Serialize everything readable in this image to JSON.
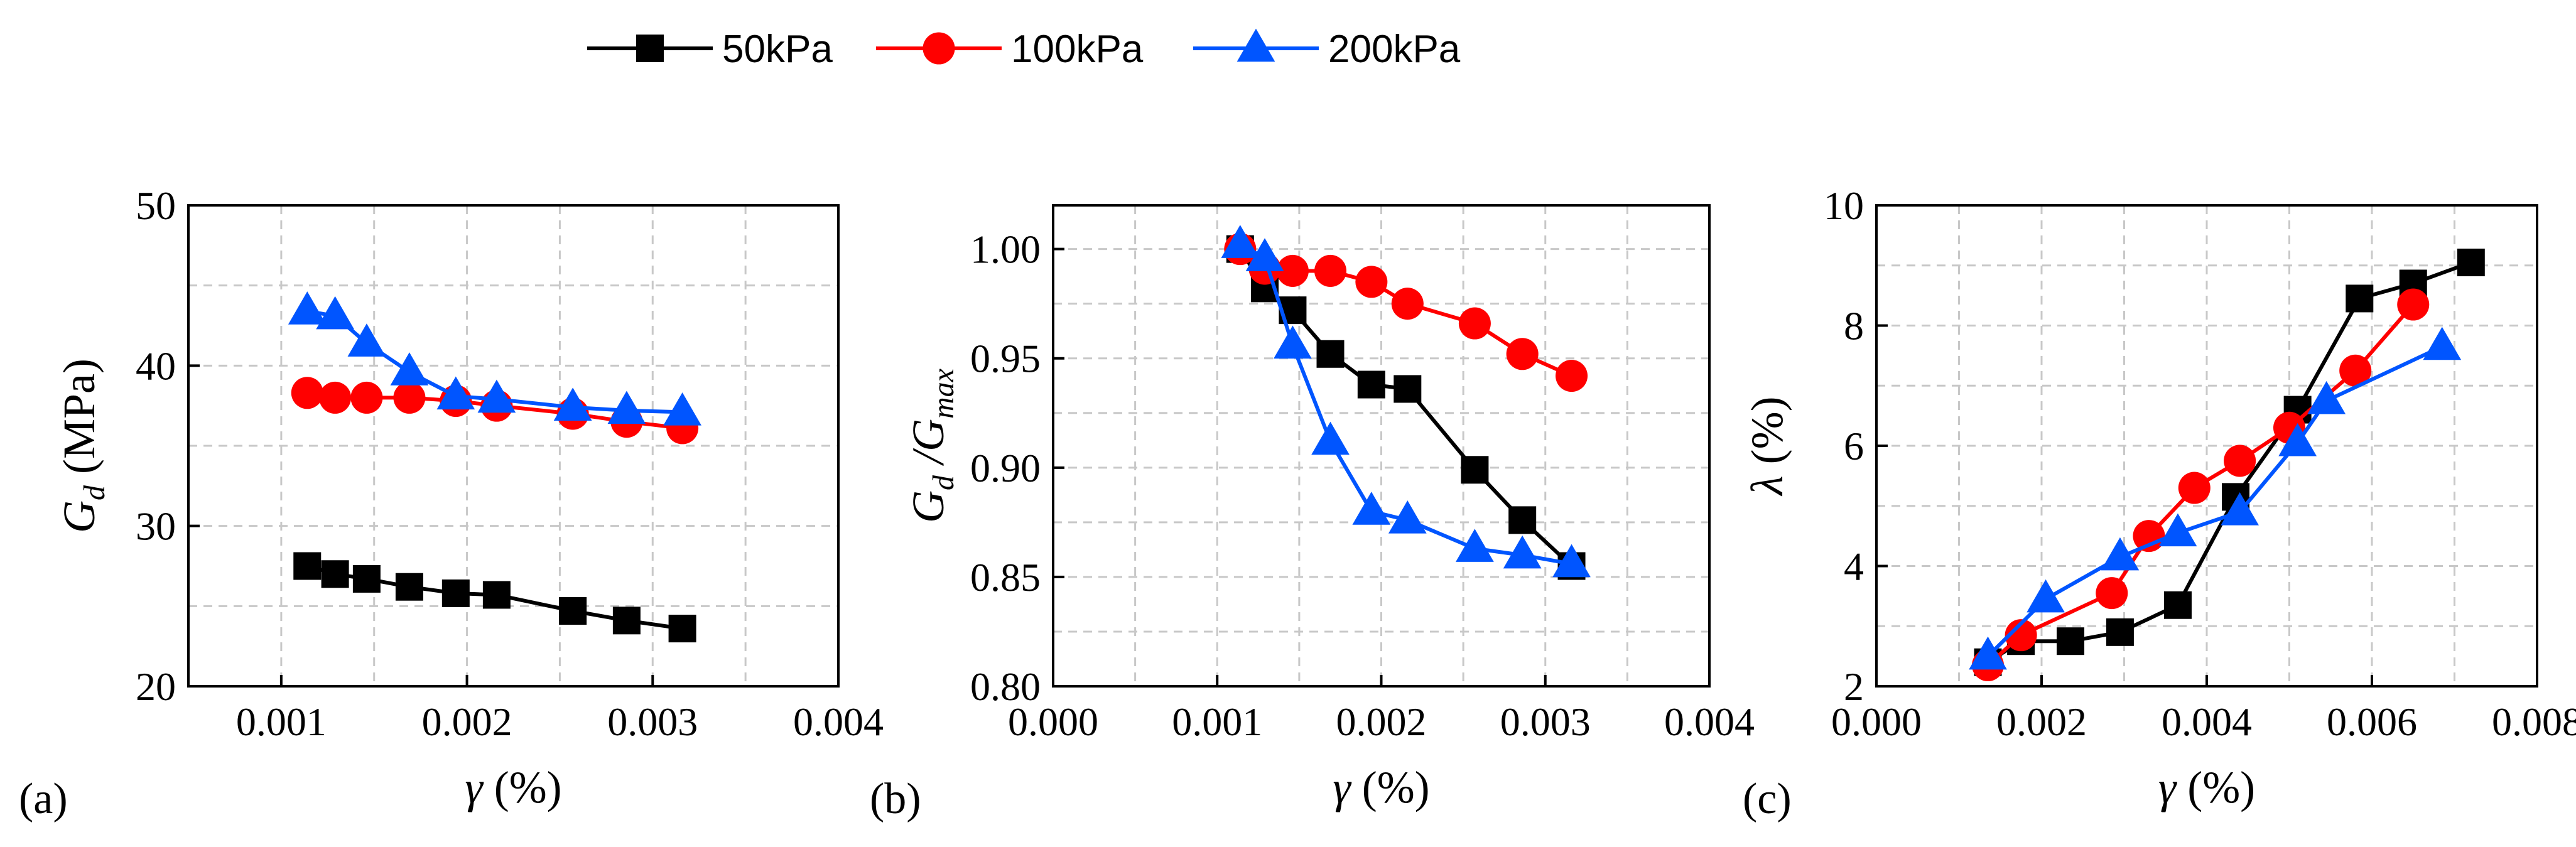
{
  "colors": {
    "50kPa": "#000000",
    "100kPa": "#ff0000",
    "200kPa": "#0055ff"
  },
  "legend": {
    "entries": [
      {
        "name": "50kPa",
        "marker": "square",
        "color": "#000000"
      },
      {
        "name": "100kPa",
        "marker": "circle",
        "color": "#ff0000"
      },
      {
        "name": "200kPa",
        "marker": "triangle",
        "color": "#0055ff"
      }
    ],
    "placement": "top-center"
  },
  "chart_data": [
    {
      "panel": "(a)",
      "type": "line",
      "xlabel": {
        "main": "γ",
        "unit": " (%)"
      },
      "ylabel": {
        "main": "G",
        "sub": "d",
        "unit": " (MPa)"
      },
      "xlim": [
        0.0005,
        0.004
      ],
      "ylim": [
        20,
        50
      ],
      "xticks": [
        0.001,
        0.002,
        0.003,
        0.004
      ],
      "xtick_labels": [
        "0.001",
        "0.002",
        "0.003",
        "0.004"
      ],
      "yticks": [
        20,
        30,
        40,
        50
      ],
      "ytick_labels": [
        "20",
        "30",
        "40",
        "50"
      ],
      "grid": true,
      "series": [
        {
          "name": "50kPa",
          "marker": "square",
          "color": "#000000",
          "x": [
            0.00114,
            0.00129,
            0.00146,
            0.00169,
            0.00194,
            0.00216,
            0.00257,
            0.00286,
            0.00316
          ],
          "y": [
            27.5,
            27.0,
            26.7,
            26.2,
            25.8,
            25.7,
            24.7,
            24.1,
            23.6
          ]
        },
        {
          "name": "100kPa",
          "marker": "circle",
          "color": "#ff0000",
          "x": [
            0.00114,
            0.00129,
            0.00146,
            0.00169,
            0.00194,
            0.00216,
            0.00257,
            0.00286,
            0.00316
          ],
          "y": [
            38.3,
            38.0,
            38.0,
            38.0,
            37.8,
            37.5,
            37.0,
            36.5,
            36.1
          ]
        },
        {
          "name": "200kPa",
          "marker": "triangle",
          "color": "#0055ff",
          "x": [
            0.00114,
            0.00129,
            0.00146,
            0.00169,
            0.00194,
            0.00216,
            0.00257,
            0.00286,
            0.00316
          ],
          "y": [
            43.4,
            43.1,
            41.4,
            39.6,
            38.1,
            37.9,
            37.4,
            37.2,
            37.1
          ]
        }
      ]
    },
    {
      "panel": "(b)",
      "type": "line",
      "xlabel": {
        "main": "γ",
        "unit": " (%)"
      },
      "ylabel": {
        "main": "G",
        "sub": "d",
        "mid": " /G",
        "sub2": "max",
        "unit": ""
      },
      "xlim": [
        0.0,
        0.004
      ],
      "ylim": [
        0.8,
        1.02
      ],
      "xticks": [
        0.0,
        0.001,
        0.002,
        0.003,
        0.004
      ],
      "xtick_labels": [
        "0.000",
        "0.001",
        "0.002",
        "0.003",
        "0.004"
      ],
      "yticks": [
        0.8,
        0.85,
        0.9,
        0.95,
        1.0
      ],
      "ytick_labels": [
        "0.80",
        "0.85",
        "0.90",
        "0.95",
        "1.00"
      ],
      "grid": true,
      "series": [
        {
          "name": "50kPa",
          "marker": "square",
          "color": "#000000",
          "x": [
            0.00114,
            0.00129,
            0.00146,
            0.00169,
            0.00194,
            0.00216,
            0.00257,
            0.00286,
            0.00316
          ],
          "y": [
            1.0,
            0.982,
            0.972,
            0.952,
            0.938,
            0.936,
            0.899,
            0.876,
            0.855
          ]
        },
        {
          "name": "100kPa",
          "marker": "circle",
          "color": "#ff0000",
          "x": [
            0.00114,
            0.00129,
            0.00146,
            0.00169,
            0.00194,
            0.00216,
            0.00257,
            0.00286,
            0.00316
          ],
          "y": [
            1.0,
            0.991,
            0.99,
            0.99,
            0.985,
            0.975,
            0.966,
            0.952,
            0.942
          ]
        },
        {
          "name": "200kPa",
          "marker": "triangle",
          "color": "#0055ff",
          "x": [
            0.00114,
            0.00129,
            0.00146,
            0.00169,
            0.00194,
            0.00216,
            0.00257,
            0.00286,
            0.00316
          ],
          "y": [
            1.002,
            0.996,
            0.956,
            0.912,
            0.88,
            0.876,
            0.863,
            0.86,
            0.856
          ]
        }
      ]
    },
    {
      "panel": "(c)",
      "type": "line",
      "xlabel": {
        "main": "γ",
        "unit": " (%)"
      },
      "ylabel": {
        "main": "λ",
        "unit": " (%)"
      },
      "xlim": [
        0.0,
        0.008
      ],
      "ylim": [
        2,
        10
      ],
      "xticks": [
        0.0,
        0.002,
        0.004,
        0.006,
        0.008
      ],
      "xtick_labels": [
        "0.000",
        "0.002",
        "0.004",
        "0.006",
        "0.008"
      ],
      "yticks": [
        2,
        4,
        6,
        8,
        10
      ],
      "ytick_labels": [
        "2",
        "4",
        "6",
        "8",
        "10"
      ],
      "grid": true,
      "series": [
        {
          "name": "50kPa",
          "marker": "square",
          "color": "#000000",
          "x": [
            0.00135,
            0.00175,
            0.00235,
            0.00295,
            0.00365,
            0.00435,
            0.0051,
            0.00585,
            0.0065,
            0.0072
          ],
          "y": [
            2.4,
            2.75,
            2.75,
            2.9,
            3.35,
            5.15,
            6.6,
            8.45,
            8.7,
            9.05
          ]
        },
        {
          "name": "100kPa",
          "marker": "circle",
          "color": "#ff0000",
          "x": [
            0.00135,
            0.00175,
            0.00285,
            0.0033,
            0.00385,
            0.0044,
            0.005,
            0.0058,
            0.0065
          ],
          "y": [
            2.35,
            2.85,
            3.55,
            4.5,
            5.3,
            5.75,
            6.3,
            7.25,
            8.35
          ]
        },
        {
          "name": "200kPa",
          "marker": "triangle",
          "color": "#0055ff",
          "x": [
            0.00135,
            0.00205,
            0.00295,
            0.00365,
            0.0044,
            0.0051,
            0.00545,
            0.00685
          ],
          "y": [
            2.5,
            3.45,
            4.15,
            4.55,
            4.9,
            6.05,
            6.75,
            7.65
          ]
        }
      ]
    }
  ]
}
